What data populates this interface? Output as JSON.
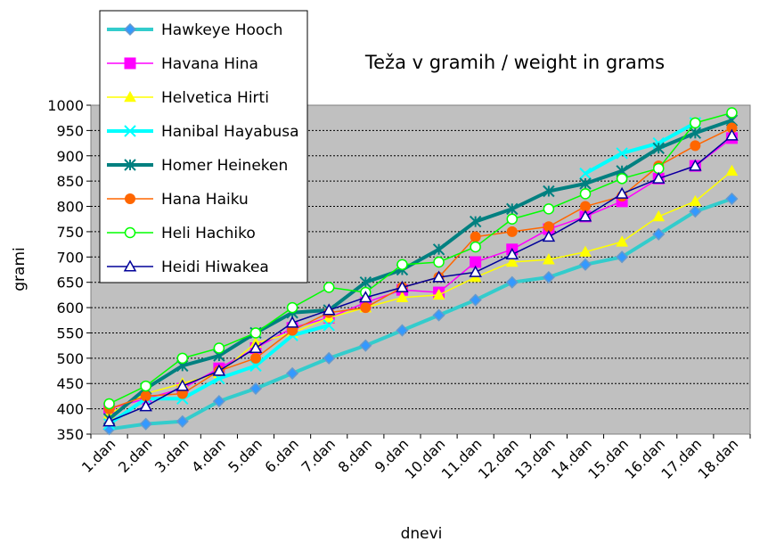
{
  "chart_data": {
    "type": "line",
    "title": "Teža v gramih / weight in grams",
    "xlabel": "dnevi",
    "ylabel": "grami",
    "ylim": [
      350,
      1000
    ],
    "yticks": [
      "350",
      "400",
      "450",
      "500",
      "550",
      "600",
      "650",
      "700",
      "750",
      "800",
      "850",
      "900",
      "950",
      "1000"
    ],
    "grid": "horizontal dashed",
    "plot_background": "#c0c0c0",
    "legend_position": "top-left",
    "categories": [
      "1.dan",
      "2.dan",
      "3.dan",
      "4.dan",
      "5.dan",
      "6.dan",
      "7.dan",
      "8.dan",
      "9.dan",
      "10.dan",
      "11.dan",
      "12.dan",
      "13.dan",
      "14.dan",
      "15.dan",
      "16.dan",
      "17.dan",
      "18.dan"
    ],
    "series": [
      {
        "name": "Hawkeye Hooch",
        "color": "#33cccc",
        "marker": "diamond",
        "values": [
          360,
          370,
          375,
          415,
          440,
          470,
          500,
          525,
          555,
          585,
          615,
          650,
          660,
          685,
          700,
          745,
          790,
          815
        ]
      },
      {
        "name": "Havana Hina",
        "color": "#ff00ff",
        "marker": "square",
        "values": [
          400,
          420,
          440,
          480,
          520,
          560,
          580,
          610,
          635,
          630,
          690,
          715,
          755,
          780,
          810,
          855,
          880,
          935
        ]
      },
      {
        "name": "Helvetica Hirti",
        "color": "#ffff00",
        "marker": "triangle",
        "values": [
          390,
          430,
          450,
          470,
          530,
          550,
          580,
          600,
          620,
          625,
          660,
          690,
          695,
          710,
          730,
          780,
          810,
          870
        ]
      },
      {
        "name": "Hanibal Hayabusa",
        "color": "#00ffff",
        "marker": "x",
        "values": [
          370,
          420,
          420,
          460,
          485,
          545,
          565,
          null,
          null,
          null,
          null,
          null,
          null,
          865,
          905,
          925,
          965,
          null
        ]
      },
      {
        "name": "Homer Heineken",
        "color": "#008080",
        "marker": "asterisk",
        "values": [
          380,
          440,
          485,
          505,
          550,
          590,
          595,
          650,
          675,
          715,
          770,
          795,
          830,
          845,
          870,
          915,
          945,
          970
        ]
      },
      {
        "name": "Hana Haiku",
        "color": "#ff6600",
        "marker": "circle-filled",
        "values": [
          400,
          425,
          430,
          475,
          500,
          555,
          590,
          600,
          640,
          660,
          740,
          750,
          760,
          800,
          820,
          880,
          920,
          955
        ]
      },
      {
        "name": "Heli Hachiko",
        "color": "#00ff00",
        "marker": "circle-open",
        "values": [
          410,
          445,
          500,
          520,
          550,
          600,
          640,
          630,
          685,
          690,
          720,
          775,
          795,
          825,
          855,
          875,
          965,
          985
        ]
      },
      {
        "name": "Heidi Hiwakea",
        "color": "#000099",
        "marker": "triangle-open",
        "values": [
          375,
          405,
          445,
          475,
          520,
          570,
          595,
          620,
          640,
          660,
          670,
          705,
          740,
          780,
          825,
          855,
          880,
          940
        ]
      }
    ]
  }
}
